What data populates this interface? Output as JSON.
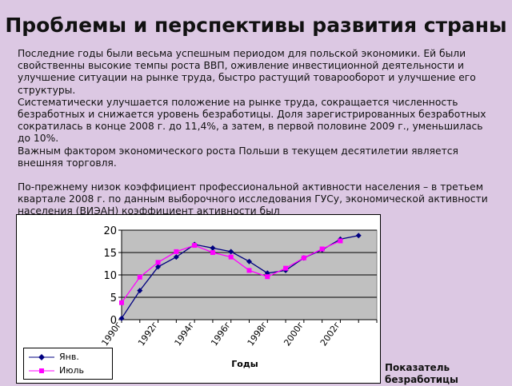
{
  "slide": {
    "title": "Проблемы и перспективы развития страны",
    "paragraphs": [
      "Последние годы были весьма успешным периодом для польской экономики. Ей были свойственны высокие темпы роста ВВП, оживление инвестиционной деятельности и улучшение ситуации на рынке труда, быстро растущий товарооборот и улучшение его структуры.",
      "Систематически улучшается положение на рынке труда, сокращается численность безработных и снижается уровень безработицы. Доля зарегистрированных безработных сократилась в конце 2008 г. до 11,4%, а затем, в первой половине 2009 г., уменьшилась до 10%.",
      "Важным фактором экономического роста Польши в текущем десятилетии является внешняя торговля.",
      "По-прежнему низок коэффициент профессиональной активности населения – в третьем квартале 2008 г. по данным выборочного исследования ГУСу, экономической активности населения (ВИЭАН) коэффициент активности был"
    ],
    "side_label": "Показатель безработицы"
  },
  "chart_data": {
    "type": "line",
    "title": "",
    "xlabel": "Годы",
    "ylabel": "",
    "ylim": [
      0,
      20
    ],
    "yticks": [
      "0",
      "5",
      "10",
      "15",
      "20"
    ],
    "xtick_labels": [
      "1990г",
      "1992г",
      "1994г",
      "1996г",
      "1998г",
      "2000г",
      "2002г"
    ],
    "x": [
      1990,
      1991,
      1992,
      1993,
      1994,
      1995,
      1996,
      1997,
      1998,
      1999,
      2000,
      2001,
      2002,
      2003,
      2004
    ],
    "grid": true,
    "legend_position": "bottom-left",
    "series": [
      {
        "name": "Янв.",
        "color": "#000080",
        "marker": "diamond",
        "values": [
          0.3,
          6.5,
          11.8,
          14,
          16.8,
          16,
          15.2,
          13,
          10.4,
          11,
          13.8,
          15.6,
          18,
          18.8,
          null
        ]
      },
      {
        "name": "Июль",
        "color": "#ff00ff",
        "marker": "square",
        "values": [
          3.8,
          9.5,
          12.8,
          15.2,
          16.6,
          15,
          14,
          11,
          9.6,
          11.5,
          13.8,
          15.8,
          17.6,
          null,
          null
        ]
      }
    ]
  }
}
